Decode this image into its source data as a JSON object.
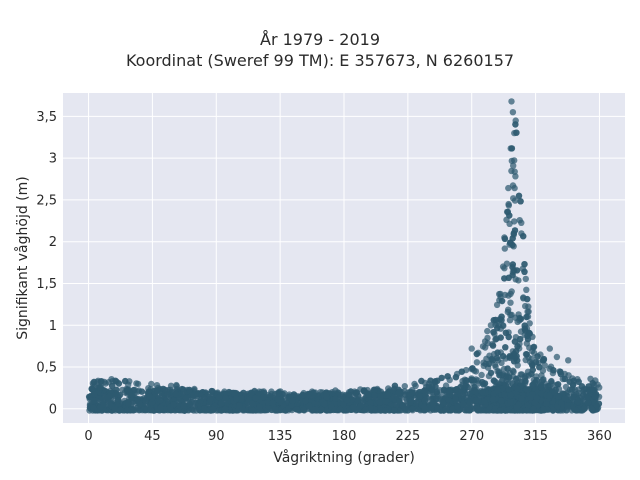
{
  "chart_data": {
    "type": "scatter",
    "title_line1": "År 1979 - 2019",
    "title_line2": "Koordinat (Sweref 99 TM): E 357673, N 6260157",
    "xlabel": "Vågriktning (grader)",
    "ylabel": "Signifikant våghöjd (m)",
    "xlim": [
      -18,
      378
    ],
    "ylim": [
      -0.17,
      3.78
    ],
    "x_ticks": [
      0,
      45,
      90,
      135,
      180,
      225,
      270,
      315,
      360
    ],
    "x_tick_labels": [
      "0",
      "45",
      "90",
      "135",
      "180",
      "225",
      "270",
      "315",
      "360"
    ],
    "y_ticks": [
      0,
      0.5,
      1,
      1.5,
      2,
      2.5,
      3,
      3.5
    ],
    "y_tick_labels": [
      "0",
      "0,5",
      "1",
      "1,5",
      "2",
      "2,5",
      "3",
      "3,5"
    ],
    "grid": true,
    "marker_color": "#2e5a70",
    "plot_bg": "#e5e7f1",
    "series": [
      {
        "envelope": {
          "direction_deg": [
            0,
            10,
            20,
            30,
            45,
            60,
            75,
            90,
            105,
            120,
            135,
            150,
            165,
            180,
            195,
            210,
            225,
            240,
            255,
            262,
            270,
            275,
            280,
            285,
            290,
            293,
            296,
            298,
            300,
            302,
            304,
            306,
            308,
            310,
            313,
            316,
            320,
            325,
            330,
            335,
            340,
            345,
            350,
            355,
            360
          ],
          "max_height_m": [
            0.38,
            0.37,
            0.36,
            0.34,
            0.32,
            0.29,
            0.26,
            0.22,
            0.21,
            0.22,
            0.21,
            0.2,
            0.22,
            0.22,
            0.24,
            0.26,
            0.3,
            0.36,
            0.4,
            0.45,
            0.55,
            0.7,
            0.88,
            1.1,
            1.5,
            2.0,
            2.7,
            3.3,
            3.68,
            3.4,
            2.7,
            2.2,
            1.7,
            1.25,
            0.95,
            0.8,
            0.65,
            0.55,
            0.5,
            0.45,
            0.42,
            0.4,
            0.38,
            0.38,
            0.37
          ]
        },
        "outliers": [
          {
            "x": 298,
            "y": 3.68
          },
          {
            "x": 299,
            "y": 3.55
          },
          {
            "x": 301,
            "y": 3.45
          },
          {
            "x": 300,
            "y": 3.3
          },
          {
            "x": 296,
            "y": 2.45
          },
          {
            "x": 293,
            "y": 2.05
          },
          {
            "x": 305,
            "y": 2.1
          },
          {
            "x": 301,
            "y": 1.55
          },
          {
            "x": 292,
            "y": 1.0
          },
          {
            "x": 281,
            "y": 0.93
          },
          {
            "x": 325,
            "y": 0.72
          },
          {
            "x": 330,
            "y": 0.62
          },
          {
            "x": 338,
            "y": 0.58
          },
          {
            "x": 270,
            "y": 0.72
          }
        ]
      }
    ]
  }
}
